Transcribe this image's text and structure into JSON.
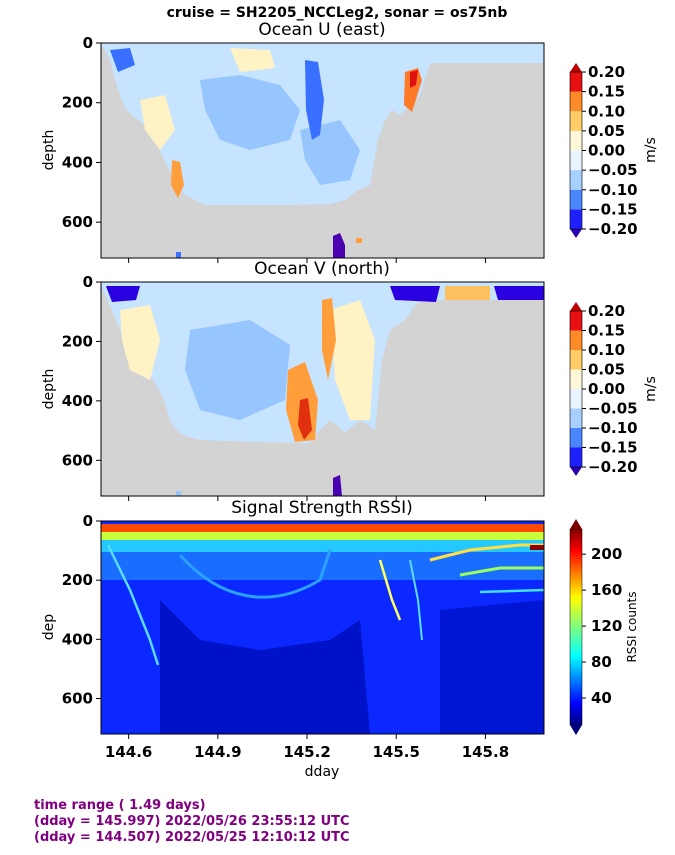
{
  "suptitle": "cruise = SH2205_NCCLeg2,  sonar = os75nb",
  "footer": {
    "line1": "time range ( 1.49 days)",
    "line2": "(dday = 145.997) 2022/05/26 23:55:12 UTC",
    "line3": "(dday = 144.507) 2022/05/25 12:10:12 UTC"
  },
  "colors": {
    "nodata": "#d3d3d3",
    "footer_text": "#800080"
  },
  "chart_data": [
    {
      "type": "heatmap",
      "title": "Ocean U (east)",
      "xlabel": "",
      "ylabel": "depth",
      "xlim": [
        144.507,
        145.997
      ],
      "ylim": [
        720,
        0
      ],
      "yticks": [
        "0",
        "200",
        "400",
        "600"
      ],
      "colorbar": {
        "label": "m/s",
        "colormap": "jet-discrete",
        "ticks": [
          "0.20",
          "0.15",
          "0.10",
          "0.05",
          "0.00",
          "−0.05",
          "−0.10",
          "−0.15",
          "−0.20"
        ]
      }
    },
    {
      "type": "heatmap",
      "title": "Ocean V (north)",
      "xlabel": "",
      "ylabel": "depth",
      "xlim": [
        144.507,
        145.997
      ],
      "ylim": [
        720,
        0
      ],
      "yticks": [
        "0",
        "200",
        "400",
        "600"
      ],
      "colorbar": {
        "label": "m/s",
        "colormap": "jet-discrete",
        "ticks": [
          "0.20",
          "0.15",
          "0.10",
          "0.05",
          "0.00",
          "−0.05",
          "−0.10",
          "−0.15",
          "−0.20"
        ]
      }
    },
    {
      "type": "heatmap",
      "title": "Signal Strength RSSI)",
      "xlabel": "dday",
      "ylabel": "dep",
      "xlim": [
        144.507,
        145.997
      ],
      "ylim": [
        720,
        0
      ],
      "yticks": [
        "0",
        "200",
        "400",
        "600"
      ],
      "xticks": [
        "144.6",
        "144.9",
        "145.2",
        "145.5",
        "145.8"
      ],
      "colorbar": {
        "label": "RSSI counts",
        "colormap": "jet",
        "ticks": [
          "200",
          "160",
          "120",
          "80",
          "40"
        ]
      }
    }
  ]
}
